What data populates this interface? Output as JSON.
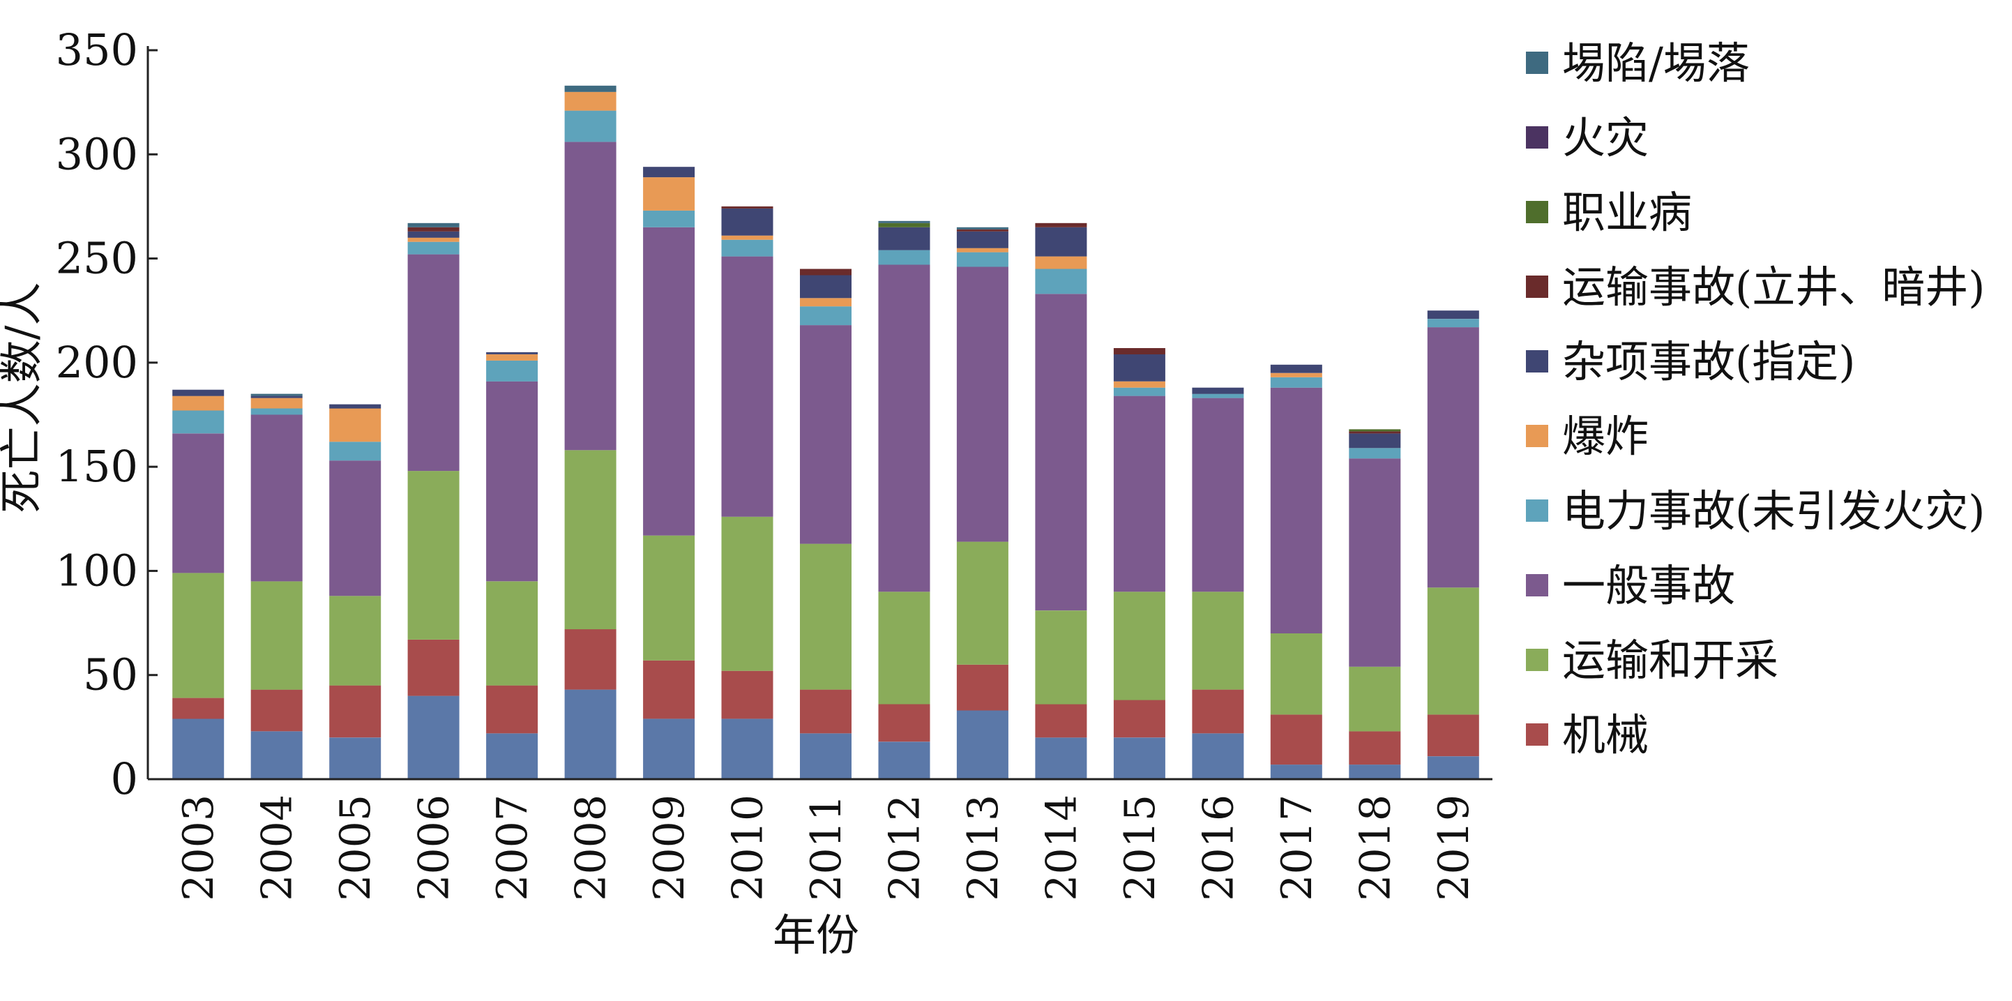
{
  "chart_data": {
    "type": "bar",
    "stacked": true,
    "xlabel": "年份",
    "ylabel": "死亡人数/人",
    "ylim": [
      0,
      350
    ],
    "yticks": [
      0,
      50,
      100,
      150,
      200,
      250,
      300,
      350
    ],
    "grid": false,
    "legend_position": "right",
    "categories": [
      "2003",
      "2004",
      "2005",
      "2006",
      "2007",
      "2008",
      "2009",
      "2010",
      "2011",
      "2012",
      "2013",
      "2014",
      "2015",
      "2016",
      "2017",
      "2018",
      "2019"
    ],
    "series": [
      {
        "name": "",
        "color": "#5b78a8",
        "values": [
          29,
          23,
          20,
          40,
          22,
          43,
          29,
          29,
          22,
          18,
          33,
          20,
          20,
          22,
          7,
          7,
          11
        ]
      },
      {
        "name": "机械",
        "color": "#a84c4c",
        "values": [
          10,
          20,
          25,
          27,
          23,
          29,
          28,
          23,
          21,
          18,
          22,
          16,
          18,
          21,
          24,
          16,
          20
        ]
      },
      {
        "name": "运输和开采",
        "color": "#8aac5a",
        "values": [
          60,
          52,
          43,
          81,
          50,
          86,
          60,
          74,
          70,
          54,
          59,
          45,
          52,
          47,
          39,
          31,
          61
        ]
      },
      {
        "name": "一般事故",
        "color": "#7c5a8e",
        "values": [
          67,
          80,
          65,
          104,
          96,
          148,
          148,
          125,
          105,
          157,
          132,
          152,
          94,
          93,
          118,
          100,
          125
        ]
      },
      {
        "name": "电力事故(未引发火灾)",
        "color": "#5ea3bb",
        "values": [
          11,
          3,
          9,
          6,
          10,
          15,
          8,
          8,
          9,
          7,
          7,
          12,
          4,
          2,
          5,
          5,
          4
        ]
      },
      {
        "name": "爆炸",
        "color": "#e89a55",
        "values": [
          7,
          5,
          16,
          2,
          3,
          9,
          16,
          2,
          4,
          0,
          2,
          6,
          3,
          0,
          2,
          0,
          0
        ]
      },
      {
        "name": "杂项事故(指定)",
        "color": "#3f4673",
        "values": [
          3,
          1,
          2,
          3,
          1,
          0,
          5,
          13,
          11,
          11,
          8,
          14,
          13,
          3,
          4,
          7,
          4
        ]
      },
      {
        "name": "运输事故(立井、暗井)",
        "color": "#6a2b2b",
        "values": [
          0,
          0,
          0,
          2,
          0,
          0,
          0,
          1,
          3,
          0,
          1,
          2,
          3,
          0,
          0,
          1,
          0
        ]
      },
      {
        "name": "职业病",
        "color": "#4f6e2c",
        "values": [
          0,
          0,
          0,
          0,
          0,
          0,
          0,
          0,
          0,
          2,
          0,
          0,
          0,
          0,
          0,
          1,
          0
        ]
      },
      {
        "name": "火灾",
        "color": "#4b3361",
        "values": [
          0,
          0,
          0,
          0,
          0,
          0,
          0,
          0,
          0,
          0,
          0,
          0,
          0,
          0,
          0,
          0,
          0
        ]
      },
      {
        "name": "埸陷/埸落",
        "color": "#3e6a80",
        "values": [
          0,
          1,
          0,
          2,
          0,
          3,
          0,
          0,
          0,
          1,
          1,
          0,
          0,
          0,
          0,
          0,
          0
        ]
      }
    ]
  }
}
